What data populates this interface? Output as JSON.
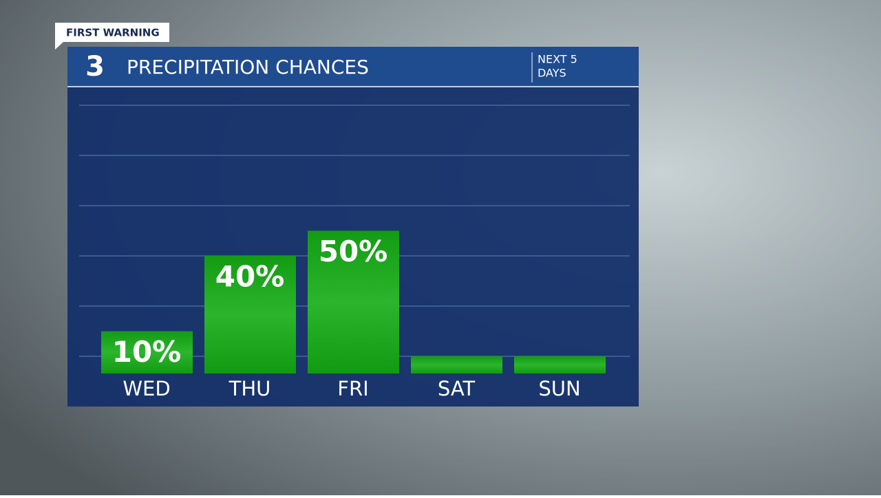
{
  "chart_data": {
    "type": "bar",
    "badge": "FIRST WARNING",
    "logo": "3",
    "title": "PRECIPITATION CHANCES",
    "subtitle": [
      "NEXT 5",
      "DAYS"
    ],
    "categories": [
      "WED",
      "THU",
      "FRI",
      "SAT",
      "SUN"
    ],
    "values": [
      10,
      40,
      50,
      0,
      0
    ],
    "value_labels": [
      "10%",
      "40%",
      "50%",
      null,
      null
    ],
    "color": "#18a418",
    "ylim": [
      0,
      100
    ],
    "yticks": [
      0,
      20,
      40,
      60,
      80,
      100
    ],
    "grid": true
  }
}
